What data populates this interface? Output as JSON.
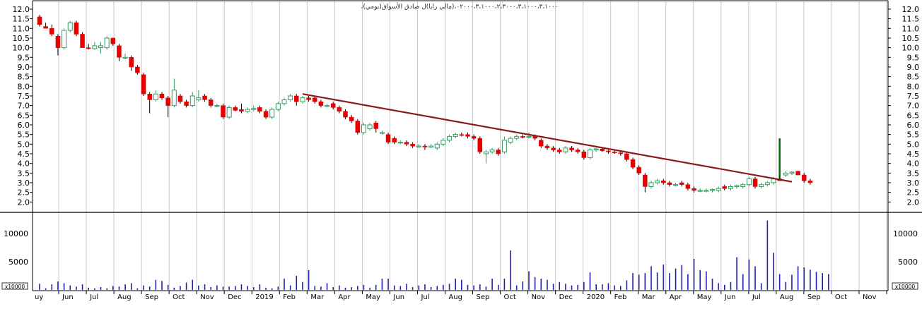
{
  "chart_data": {
    "type": "candlestick",
    "title": "،٠٢٠٠٠،٣،١٠٠٠،٢،٣٠٠٠،٣،١٠٠٠،٣،١٠٠٠،(مالي رايا)ل صادق الأسواق(يومي)",
    "x_tick_labels": [
      "uy",
      "Jun",
      "Jul",
      "Aug",
      "Sep",
      "Oct",
      "Nov",
      "Dec",
      "2019",
      "Feb",
      "Mar",
      "Apr",
      "May",
      "Jun",
      "Jul",
      "Aug",
      "Sep",
      "Oct",
      "Nov",
      "Dec",
      "2020",
      "Feb",
      "Mar",
      "Apr",
      "May",
      "Jun",
      "Jul",
      "Aug",
      "Sep",
      "Oct",
      "Nov"
    ],
    "price_axis": {
      "ylim": [
        1.5,
        12.4
      ],
      "ticks": [
        "2.0",
        "2.5",
        "3.0",
        "3.5",
        "4.0",
        "4.5",
        "5.0",
        "5.5",
        "6.0",
        "6.5",
        "7.0",
        "7.5",
        "8.0",
        "8.5",
        "9.0",
        "9.5",
        "10.0",
        "10.5",
        "11.0",
        "11.5",
        "12.0"
      ],
      "tick_values": [
        2.0,
        2.5,
        3.0,
        3.5,
        4.0,
        4.5,
        5.0,
        5.5,
        6.0,
        6.5,
        7.0,
        7.5,
        8.0,
        8.5,
        9.0,
        9.5,
        10.0,
        10.5,
        11.0,
        11.5,
        12.0
      ]
    },
    "volume_axis": {
      "ylim": [
        0,
        13500
      ],
      "ticks": [
        "5000",
        "10000"
      ],
      "tick_values": [
        5000,
        10000
      ],
      "multiplier_label": "x10000"
    },
    "candles": [
      {
        "o": 11.6,
        "h": 11.7,
        "l": 11.1,
        "c": 11.2
      },
      {
        "o": 11.1,
        "h": 11.3,
        "l": 11.0,
        "c": 11.0
      },
      {
        "o": 11.0,
        "h": 11.2,
        "l": 10.6,
        "c": 10.7
      },
      {
        "o": 10.6,
        "h": 10.7,
        "l": 9.6,
        "c": 10.0
      },
      {
        "o": 10.0,
        "h": 11.0,
        "l": 9.9,
        "c": 10.9
      },
      {
        "o": 10.9,
        "h": 11.4,
        "l": 10.8,
        "c": 11.3
      },
      {
        "o": 11.3,
        "h": 11.4,
        "l": 10.6,
        "c": 10.7
      },
      {
        "o": 10.7,
        "h": 10.8,
        "l": 10.0,
        "c": 10.0
      },
      {
        "o": 10.0,
        "h": 10.2,
        "l": 9.9,
        "c": 9.95
      },
      {
        "o": 9.95,
        "h": 10.3,
        "l": 9.9,
        "c": 10.1
      },
      {
        "o": 10.0,
        "h": 10.3,
        "l": 9.7,
        "c": 10.1
      },
      {
        "o": 10.0,
        "h": 10.6,
        "l": 9.9,
        "c": 10.5
      },
      {
        "o": 10.5,
        "h": 10.5,
        "l": 10.1,
        "c": 10.2
      },
      {
        "o": 10.1,
        "h": 10.2,
        "l": 9.3,
        "c": 9.5
      },
      {
        "o": 9.5,
        "h": 9.7,
        "l": 9.4,
        "c": 9.5
      },
      {
        "o": 9.5,
        "h": 9.6,
        "l": 8.8,
        "c": 9.0
      },
      {
        "o": 9.0,
        "h": 9.1,
        "l": 8.6,
        "c": 8.7
      },
      {
        "o": 8.6,
        "h": 8.7,
        "l": 7.5,
        "c": 7.6
      },
      {
        "o": 7.6,
        "h": 7.7,
        "l": 6.6,
        "c": 7.3
      },
      {
        "o": 7.3,
        "h": 7.8,
        "l": 7.2,
        "c": 7.6
      },
      {
        "o": 7.6,
        "h": 7.7,
        "l": 7.3,
        "c": 7.4
      },
      {
        "o": 7.4,
        "h": 7.5,
        "l": 6.4,
        "c": 7.0
      },
      {
        "o": 7.0,
        "h": 8.4,
        "l": 6.9,
        "c": 7.8
      },
      {
        "o": 7.5,
        "h": 7.6,
        "l": 7.1,
        "c": 7.2
      },
      {
        "o": 7.2,
        "h": 7.3,
        "l": 6.9,
        "c": 7.0
      },
      {
        "o": 7.0,
        "h": 7.7,
        "l": 6.9,
        "c": 7.5
      },
      {
        "o": 7.3,
        "h": 7.8,
        "l": 7.2,
        "c": 7.4
      },
      {
        "o": 7.5,
        "h": 7.6,
        "l": 7.2,
        "c": 7.3
      },
      {
        "o": 7.3,
        "h": 7.4,
        "l": 6.9,
        "c": 7.0
      },
      {
        "o": 7.0,
        "h": 7.1,
        "l": 6.9,
        "c": 7.0
      },
      {
        "o": 7.0,
        "h": 7.1,
        "l": 6.3,
        "c": 6.4
      },
      {
        "o": 6.4,
        "h": 7.0,
        "l": 6.3,
        "c": 6.9
      },
      {
        "o": 6.9,
        "h": 7.0,
        "l": 6.7,
        "c": 6.75
      },
      {
        "o": 6.8,
        "h": 7.1,
        "l": 6.6,
        "c": 6.7
      },
      {
        "o": 6.7,
        "h": 6.9,
        "l": 6.6,
        "c": 6.8
      },
      {
        "o": 6.8,
        "h": 7.0,
        "l": 6.7,
        "c": 6.85
      },
      {
        "o": 6.9,
        "h": 7.0,
        "l": 6.6,
        "c": 6.7
      },
      {
        "o": 6.7,
        "h": 6.8,
        "l": 6.3,
        "c": 6.4
      },
      {
        "o": 6.4,
        "h": 6.9,
        "l": 6.3,
        "c": 6.8
      },
      {
        "o": 6.8,
        "h": 7.2,
        "l": 6.7,
        "c": 7.1
      },
      {
        "o": 7.1,
        "h": 7.4,
        "l": 7.0,
        "c": 7.3
      },
      {
        "o": 7.3,
        "h": 7.6,
        "l": 7.2,
        "c": 7.5
      },
      {
        "o": 7.5,
        "h": 7.6,
        "l": 7.0,
        "c": 7.2
      },
      {
        "o": 7.2,
        "h": 7.5,
        "l": 7.1,
        "c": 7.4
      },
      {
        "o": 7.4,
        "h": 7.5,
        "l": 7.2,
        "c": 7.3
      },
      {
        "o": 7.4,
        "h": 7.5,
        "l": 7.1,
        "c": 7.2
      },
      {
        "o": 7.2,
        "h": 7.3,
        "l": 6.9,
        "c": 7.0
      },
      {
        "o": 7.0,
        "h": 7.1,
        "l": 6.9,
        "c": 7.0
      },
      {
        "o": 7.1,
        "h": 7.2,
        "l": 6.8,
        "c": 6.9
      },
      {
        "o": 6.9,
        "h": 7.0,
        "l": 6.6,
        "c": 6.7
      },
      {
        "o": 6.7,
        "h": 6.8,
        "l": 6.3,
        "c": 6.4
      },
      {
        "o": 6.4,
        "h": 6.5,
        "l": 6.1,
        "c": 6.2
      },
      {
        "o": 6.2,
        "h": 6.3,
        "l": 5.5,
        "c": 5.6
      },
      {
        "o": 5.6,
        "h": 6.1,
        "l": 5.5,
        "c": 6.0
      },
      {
        "o": 5.8,
        "h": 6.1,
        "l": 5.7,
        "c": 6.0
      },
      {
        "o": 6.1,
        "h": 6.2,
        "l": 5.6,
        "c": 5.8
      },
      {
        "o": 5.6,
        "h": 5.7,
        "l": 5.5,
        "c": 5.6
      },
      {
        "o": 5.5,
        "h": 5.6,
        "l": 5.0,
        "c": 5.1
      },
      {
        "o": 5.3,
        "h": 5.4,
        "l": 5.0,
        "c": 5.1
      },
      {
        "o": 5.1,
        "h": 5.2,
        "l": 5.0,
        "c": 5.1
      },
      {
        "o": 5.1,
        "h": 5.2,
        "l": 4.9,
        "c": 5.0
      },
      {
        "o": 5.0,
        "h": 5.1,
        "l": 4.8,
        "c": 4.9
      },
      {
        "o": 4.9,
        "h": 5.0,
        "l": 4.8,
        "c": 4.9
      },
      {
        "o": 4.9,
        "h": 5.0,
        "l": 4.7,
        "c": 4.85
      },
      {
        "o": 4.85,
        "h": 5.0,
        "l": 4.8,
        "c": 4.9
      },
      {
        "o": 4.8,
        "h": 5.1,
        "l": 4.7,
        "c": 5.0
      },
      {
        "o": 5.0,
        "h": 5.3,
        "l": 4.9,
        "c": 5.2
      },
      {
        "o": 5.2,
        "h": 5.5,
        "l": 5.1,
        "c": 5.4
      },
      {
        "o": 5.4,
        "h": 5.6,
        "l": 5.3,
        "c": 5.5
      },
      {
        "o": 5.5,
        "h": 5.6,
        "l": 5.4,
        "c": 5.45
      },
      {
        "o": 5.5,
        "h": 5.6,
        "l": 5.3,
        "c": 5.4
      },
      {
        "o": 5.4,
        "h": 5.5,
        "l": 5.2,
        "c": 5.3
      },
      {
        "o": 5.3,
        "h": 5.4,
        "l": 4.5,
        "c": 4.6
      },
      {
        "o": 4.5,
        "h": 4.7,
        "l": 4.0,
        "c": 4.6
      },
      {
        "o": 4.6,
        "h": 4.8,
        "l": 4.5,
        "c": 4.7
      },
      {
        "o": 4.7,
        "h": 4.8,
        "l": 4.4,
        "c": 4.5
      },
      {
        "o": 4.6,
        "h": 5.4,
        "l": 4.5,
        "c": 5.2
      },
      {
        "o": 5.1,
        "h": 5.4,
        "l": 5.0,
        "c": 5.3
      },
      {
        "o": 5.3,
        "h": 5.5,
        "l": 5.2,
        "c": 5.4
      },
      {
        "o": 5.4,
        "h": 5.5,
        "l": 5.3,
        "c": 5.35
      },
      {
        "o": 5.4,
        "h": 5.6,
        "l": 5.3,
        "c": 5.4
      },
      {
        "o": 5.4,
        "h": 5.5,
        "l": 5.2,
        "c": 5.3
      },
      {
        "o": 5.2,
        "h": 5.3,
        "l": 4.8,
        "c": 4.9
      },
      {
        "o": 4.9,
        "h": 5.0,
        "l": 4.7,
        "c": 4.8
      },
      {
        "o": 4.8,
        "h": 4.9,
        "l": 4.6,
        "c": 4.7
      },
      {
        "o": 4.7,
        "h": 4.8,
        "l": 4.5,
        "c": 4.6
      },
      {
        "o": 4.6,
        "h": 4.9,
        "l": 4.5,
        "c": 4.8
      },
      {
        "o": 4.8,
        "h": 4.9,
        "l": 4.6,
        "c": 4.7
      },
      {
        "o": 4.7,
        "h": 4.8,
        "l": 4.5,
        "c": 4.6
      },
      {
        "o": 4.6,
        "h": 4.7,
        "l": 4.2,
        "c": 4.3
      },
      {
        "o": 4.3,
        "h": 4.8,
        "l": 4.2,
        "c": 4.7
      },
      {
        "o": 4.7,
        "h": 4.8,
        "l": 4.6,
        "c": 4.75
      },
      {
        "o": 4.75,
        "h": 4.8,
        "l": 4.6,
        "c": 4.65
      },
      {
        "o": 4.65,
        "h": 4.7,
        "l": 4.5,
        "c": 4.6
      },
      {
        "o": 4.6,
        "h": 4.7,
        "l": 4.5,
        "c": 4.55
      },
      {
        "o": 4.55,
        "h": 4.6,
        "l": 4.4,
        "c": 4.5
      },
      {
        "o": 4.5,
        "h": 4.6,
        "l": 4.1,
        "c": 4.2
      },
      {
        "o": 4.2,
        "h": 4.3,
        "l": 3.7,
        "c": 3.8
      },
      {
        "o": 3.8,
        "h": 3.9,
        "l": 3.4,
        "c": 3.5
      },
      {
        "o": 3.4,
        "h": 3.5,
        "l": 2.5,
        "c": 2.8
      },
      {
        "o": 2.8,
        "h": 3.1,
        "l": 2.7,
        "c": 3.0
      },
      {
        "o": 3.0,
        "h": 3.2,
        "l": 2.9,
        "c": 3.1
      },
      {
        "o": 3.1,
        "h": 3.2,
        "l": 2.9,
        "c": 3.0
      },
      {
        "o": 3.0,
        "h": 3.1,
        "l": 2.8,
        "c": 2.9
      },
      {
        "o": 2.9,
        "h": 3.0,
        "l": 2.8,
        "c": 2.9
      },
      {
        "o": 3.0,
        "h": 3.1,
        "l": 2.8,
        "c": 2.9
      },
      {
        "o": 2.9,
        "h": 3.0,
        "l": 2.6,
        "c": 2.7
      },
      {
        "o": 2.7,
        "h": 2.8,
        "l": 2.5,
        "c": 2.6
      },
      {
        "o": 2.6,
        "h": 2.7,
        "l": 2.5,
        "c": 2.6
      },
      {
        "o": 2.6,
        "h": 2.7,
        "l": 2.5,
        "c": 2.6
      },
      {
        "o": 2.6,
        "h": 2.7,
        "l": 2.5,
        "c": 2.65
      },
      {
        "o": 2.6,
        "h": 2.8,
        "l": 2.5,
        "c": 2.7
      },
      {
        "o": 2.8,
        "h": 2.9,
        "l": 2.6,
        "c": 2.7
      },
      {
        "o": 2.7,
        "h": 2.9,
        "l": 2.6,
        "c": 2.8
      },
      {
        "o": 2.8,
        "h": 2.9,
        "l": 2.7,
        "c": 2.85
      },
      {
        "o": 2.8,
        "h": 3.0,
        "l": 2.7,
        "c": 2.9
      },
      {
        "o": 2.9,
        "h": 3.3,
        "l": 2.8,
        "c": 3.2
      },
      {
        "o": 3.2,
        "h": 3.3,
        "l": 2.7,
        "c": 2.8
      },
      {
        "o": 2.8,
        "h": 3.0,
        "l": 2.7,
        "c": 2.9
      },
      {
        "o": 2.9,
        "h": 3.1,
        "l": 2.8,
        "c": 3.0
      },
      {
        "o": 3.0,
        "h": 3.3,
        "l": 2.9,
        "c": 3.2
      },
      {
        "o": 3.2,
        "h": 5.3,
        "l": 3.1,
        "c": 3.1
      },
      {
        "o": 3.4,
        "h": 3.6,
        "l": 3.3,
        "c": 3.5
      },
      {
        "o": 3.5,
        "h": 3.6,
        "l": 3.4,
        "c": 3.55
      },
      {
        "o": 3.6,
        "h": 3.6,
        "l": 3.4,
        "c": 3.4
      },
      {
        "o": 3.4,
        "h": 3.5,
        "l": 3.0,
        "c": 3.1
      },
      {
        "o": 3.1,
        "h": 3.2,
        "l": 2.9,
        "c": 3.0
      }
    ],
    "volumes": [
      1100,
      300,
      1000,
      1500,
      1200,
      800,
      600,
      1000,
      400,
      300,
      500,
      300,
      700,
      600,
      1000,
      1200,
      300,
      800,
      600,
      1800,
      1600,
      900,
      400,
      700,
      1300,
      1800,
      800,
      1000,
      500,
      800,
      600,
      600,
      700,
      1000,
      700,
      500,
      1000,
      400,
      300,
      600,
      2000,
      800,
      2500,
      1400,
      3500,
      700,
      600,
      1200,
      500,
      800,
      400,
      500,
      700,
      900,
      400,
      900,
      2000,
      2000,
      800,
      700,
      1100,
      500,
      800,
      1000,
      500,
      700,
      900,
      1100,
      2000,
      1800,
      900,
      800,
      1000,
      600,
      2000,
      900,
      2000,
      7000,
      800,
      1500,
      3300,
      2300,
      2000,
      1800,
      1100,
      1400,
      1100,
      800,
      900,
      1400,
      3100,
      1000,
      1000,
      1200,
      800,
      700,
      1700,
      3000,
      2700,
      3000,
      4200,
      3100,
      4500,
      3000,
      3800,
      4400,
      2800,
      5500,
      3500,
      3300,
      2000,
      1200,
      900,
      1400,
      5800,
      2800,
      5400,
      4200,
      1200,
      12300,
      6600,
      2800,
      1400,
      2700,
      4200,
      4000,
      3600,
      3200,
      3000,
      2800
    ],
    "trendline": {
      "x0_index": 43,
      "y0": 7.6,
      "x1_index": 123,
      "y1": 3.05
    },
    "colors": {
      "up": "#2e9e5e",
      "down": "#e60000",
      "volume": "#2222aa",
      "trendline": "#8b1a1a",
      "grid": "#c8c8c8",
      "spike": "#006400"
    },
    "grid": true
  }
}
